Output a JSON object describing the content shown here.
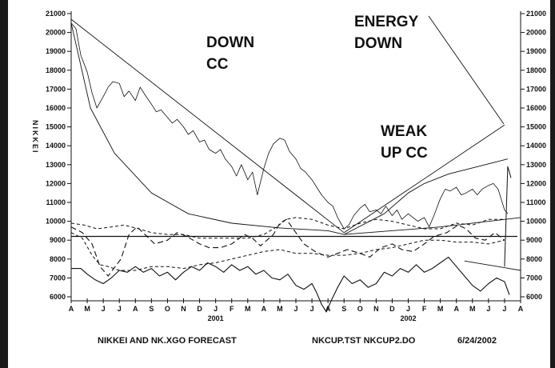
{
  "chart_data": {
    "type": "line",
    "ylabel": "NIKKEI",
    "ylim": [
      6000,
      21000
    ],
    "y_ticks": [
      6000,
      7000,
      8000,
      9000,
      10000,
      11000,
      12000,
      13000,
      14000,
      15000,
      16000,
      17000,
      18000,
      19000,
      20000,
      21000
    ],
    "months": [
      "A",
      "M",
      "J",
      "J",
      "A",
      "S",
      "O",
      "N",
      "D",
      "J",
      "F",
      "M",
      "A",
      "M",
      "J",
      "J",
      "A",
      "S",
      "O",
      "N",
      "D",
      "J",
      "F",
      "M",
      "A",
      "M",
      "J",
      "J",
      "A"
    ],
    "year_labels": [
      {
        "label": "2001",
        "month_index": 9
      },
      {
        "label": "2002",
        "month_index": 21
      }
    ],
    "annotations": [
      {
        "lines": [
          "DOWN",
          "CC"
        ]
      },
      {
        "lines": [
          "ENERGY",
          "DOWN"
        ]
      },
      {
        "lines": [
          "WEAK",
          "UP CC"
        ]
      }
    ],
    "footer": {
      "left": "NIKKEI AND NK.XGO FORECAST",
      "middle": "NKCUP.TST NKCUP2.DO",
      "right": "6/24/2002"
    },
    "series": [
      {
        "values_by_month": [
          [
            0,
            20500
          ],
          [
            0.3,
            20200
          ],
          [
            0.6,
            18800
          ],
          [
            1,
            17900
          ],
          [
            1.3,
            16800
          ],
          [
            1.6,
            16000
          ],
          [
            2,
            16600
          ],
          [
            2.3,
            17100
          ],
          [
            2.6,
            17400
          ],
          [
            3,
            17300
          ],
          [
            3.3,
            16600
          ],
          [
            3.6,
            16900
          ],
          [
            4,
            16400
          ],
          [
            4.3,
            17100
          ],
          [
            4.6,
            16700
          ],
          [
            5,
            16200
          ],
          [
            5.3,
            15800
          ],
          [
            5.6,
            15900
          ],
          [
            6,
            15500
          ],
          [
            6.3,
            15200
          ],
          [
            6.6,
            15400
          ],
          [
            7,
            15000
          ],
          [
            7.3,
            14600
          ],
          [
            7.6,
            14800
          ],
          [
            8,
            14200
          ],
          [
            8.3,
            14300
          ],
          [
            8.6,
            13800
          ],
          [
            9,
            13600
          ],
          [
            9.3,
            13800
          ],
          [
            9.6,
            13300
          ],
          [
            10,
            12900
          ],
          [
            10.3,
            12400
          ],
          [
            10.6,
            13000
          ],
          [
            11,
            12200
          ],
          [
            11.3,
            12600
          ],
          [
            11.6,
            11400
          ],
          [
            12,
            12800
          ],
          [
            12.3,
            13600
          ],
          [
            12.6,
            14100
          ],
          [
            13,
            14400
          ],
          [
            13.3,
            14300
          ],
          [
            13.6,
            13700
          ],
          [
            14,
            13300
          ],
          [
            14.3,
            12800
          ],
          [
            14.6,
            12600
          ],
          [
            15,
            12200
          ],
          [
            15.3,
            11800
          ],
          [
            15.6,
            11400
          ],
          [
            16,
            11000
          ],
          [
            16.3,
            10800
          ],
          [
            16.6,
            10200
          ],
          [
            17,
            9600
          ],
          [
            17.3,
            9800
          ],
          [
            17.6,
            10300
          ],
          [
            18,
            10700
          ],
          [
            18.3,
            10900
          ],
          [
            18.6,
            10500
          ],
          [
            19,
            10600
          ],
          [
            19.3,
            10400
          ],
          [
            19.6,
            10800
          ],
          [
            20,
            10300
          ],
          [
            20.3,
            10600
          ],
          [
            20.6,
            10100
          ],
          [
            21,
            10400
          ],
          [
            21.3,
            10200
          ],
          [
            21.6,
            10000
          ],
          [
            22,
            10200
          ],
          [
            22.3,
            9700
          ],
          [
            22.6,
            10300
          ],
          [
            23,
            11200
          ],
          [
            23.3,
            11700
          ],
          [
            23.6,
            11600
          ],
          [
            24,
            11800
          ],
          [
            24.3,
            11400
          ],
          [
            24.6,
            11500
          ],
          [
            25,
            11700
          ],
          [
            25.3,
            11400
          ],
          [
            25.6,
            11700
          ],
          [
            26,
            11900
          ],
          [
            26.3,
            12000
          ],
          [
            26.6,
            11700
          ],
          [
            27,
            10600
          ],
          [
            27.2,
            10400
          ]
        ]
      },
      {
        "values_by_month": [
          [
            0,
            20500
          ],
          [
            1.2,
            16000
          ],
          [
            2.7,
            13600
          ],
          [
            5,
            11500
          ],
          [
            7.3,
            10400
          ],
          [
            10,
            9900
          ],
          [
            13,
            9650
          ],
          [
            16,
            9500
          ],
          [
            17,
            9300
          ],
          [
            19.5,
            10400
          ],
          [
            21,
            11500
          ],
          [
            22,
            12000
          ],
          [
            23.5,
            12500
          ],
          [
            27.2,
            13300
          ]
        ]
      },
      {
        "values_by_month": [
          [
            0,
            20700
          ],
          [
            17,
            9400
          ],
          [
            27,
            15100
          ]
        ]
      },
      {
        "values_by_month": [
          [
            17,
            9300
          ],
          [
            23,
            9700
          ],
          [
            28,
            10200
          ]
        ]
      },
      {
        "values_by_month": [
          [
            0,
            9200
          ],
          [
            27.8,
            9200
          ]
        ]
      },
      {
        "values_by_month": [
          [
            0,
            9700
          ],
          [
            0.7,
            9400
          ],
          [
            1.3,
            8800
          ],
          [
            1.8,
            7600
          ],
          [
            2.3,
            7100
          ],
          [
            3.1,
            8000
          ],
          [
            3.6,
            9300
          ],
          [
            4.1,
            9700
          ],
          [
            4.6,
            9300
          ],
          [
            5.2,
            8800
          ],
          [
            6,
            9000
          ],
          [
            6.6,
            9400
          ],
          [
            7.2,
            9200
          ],
          [
            8,
            8800
          ],
          [
            8.6,
            8600
          ],
          [
            9.3,
            8600
          ],
          [
            10,
            8800
          ],
          [
            10.8,
            9300
          ],
          [
            11.3,
            9100
          ],
          [
            11.8,
            8700
          ],
          [
            12.6,
            9300
          ],
          [
            13,
            9900
          ],
          [
            13.4,
            10100
          ],
          [
            14,
            9400
          ],
          [
            14.5,
            8800
          ],
          [
            15.2,
            8400
          ],
          [
            16,
            8100
          ],
          [
            16.6,
            8300
          ],
          [
            17.2,
            8500
          ],
          [
            18,
            8300
          ],
          [
            18.6,
            8100
          ],
          [
            19.3,
            8600
          ],
          [
            20,
            8800
          ],
          [
            20.6,
            8500
          ],
          [
            21.3,
            8400
          ],
          [
            22,
            8800
          ],
          [
            22.6,
            9200
          ],
          [
            23.4,
            9400
          ],
          [
            24.1,
            9800
          ],
          [
            24.6,
            9600
          ],
          [
            25.2,
            9100
          ],
          [
            25.8,
            9000
          ],
          [
            26.4,
            9400
          ],
          [
            27,
            9000
          ]
        ]
      },
      {
        "values_by_month": [
          [
            0,
            9900
          ],
          [
            0.8,
            9800
          ],
          [
            1.6,
            9600
          ],
          [
            2.5,
            9700
          ],
          [
            3.3,
            9800
          ],
          [
            4.2,
            9600
          ],
          [
            5,
            9400
          ],
          [
            6,
            9300
          ],
          [
            7,
            9300
          ],
          [
            8,
            9100
          ],
          [
            9,
            9100
          ],
          [
            10,
            9100
          ],
          [
            11,
            9100
          ],
          [
            12,
            9300
          ],
          [
            12.8,
            9700
          ],
          [
            13.4,
            10100
          ],
          [
            14,
            10200
          ],
          [
            15,
            10100
          ],
          [
            16,
            9800
          ],
          [
            17,
            9600
          ],
          [
            18,
            9900
          ],
          [
            19,
            10100
          ],
          [
            20,
            10000
          ],
          [
            21,
            9800
          ],
          [
            22,
            9600
          ],
          [
            23,
            9600
          ],
          [
            24,
            9900
          ],
          [
            25,
            9800
          ],
          [
            26,
            10100
          ],
          [
            27,
            10100
          ]
        ]
      },
      {
        "values_by_month": [
          [
            0,
            9400
          ],
          [
            0.7,
            9100
          ],
          [
            1.3,
            8200
          ],
          [
            1.8,
            7700
          ],
          [
            2.3,
            7600
          ],
          [
            3,
            7400
          ],
          [
            4,
            7400
          ],
          [
            5,
            7600
          ],
          [
            6,
            7600
          ],
          [
            7,
            7500
          ],
          [
            8,
            7700
          ],
          [
            9,
            7800
          ],
          [
            10,
            8000
          ],
          [
            11,
            8200
          ],
          [
            12,
            8400
          ],
          [
            13,
            8500
          ],
          [
            14,
            8300
          ],
          [
            15,
            8300
          ],
          [
            16,
            8200
          ],
          [
            17,
            8200
          ],
          [
            18,
            8300
          ],
          [
            19,
            8500
          ],
          [
            20,
            8600
          ],
          [
            21,
            8800
          ],
          [
            22,
            9000
          ],
          [
            23,
            9000
          ],
          [
            24,
            8900
          ],
          [
            25,
            8900
          ],
          [
            26,
            8800
          ],
          [
            27,
            9000
          ]
        ]
      },
      {
        "values_by_month": [
          [
            0,
            7500
          ],
          [
            0.6,
            7500
          ],
          [
            1,
            7200
          ],
          [
            1.5,
            6900
          ],
          [
            2,
            6700
          ],
          [
            2.5,
            7000
          ],
          [
            3,
            7400
          ],
          [
            3.5,
            7300
          ],
          [
            4,
            7600
          ],
          [
            4.5,
            7300
          ],
          [
            5,
            7500
          ],
          [
            5.5,
            7100
          ],
          [
            6,
            7300
          ],
          [
            6.5,
            6900
          ],
          [
            7,
            7300
          ],
          [
            7.5,
            7600
          ],
          [
            8,
            7400
          ],
          [
            8.5,
            7800
          ],
          [
            9,
            7600
          ],
          [
            9.5,
            7300
          ],
          [
            10,
            7700
          ],
          [
            10.5,
            7400
          ],
          [
            11,
            7600
          ],
          [
            11.5,
            7200
          ],
          [
            12,
            7400
          ],
          [
            12.5,
            7000
          ],
          [
            13,
            6900
          ],
          [
            13.5,
            7200
          ],
          [
            14,
            6600
          ],
          [
            14.5,
            6400
          ],
          [
            15,
            6700
          ],
          [
            15.3,
            6200
          ],
          [
            15.6,
            5600
          ],
          [
            15.9,
            5200
          ],
          [
            16.2,
            5800
          ],
          [
            16.6,
            6500
          ],
          [
            17,
            7100
          ],
          [
            17.5,
            6700
          ],
          [
            18,
            6900
          ],
          [
            18.5,
            6500
          ],
          [
            19,
            6700
          ],
          [
            19.5,
            7300
          ],
          [
            20,
            7100
          ],
          [
            20.5,
            7500
          ],
          [
            21,
            7300
          ],
          [
            21.5,
            7700
          ],
          [
            22,
            7300
          ],
          [
            22.5,
            7500
          ],
          [
            23,
            7800
          ],
          [
            23.5,
            8100
          ],
          [
            24,
            7600
          ],
          [
            24.5,
            7100
          ],
          [
            25,
            6600
          ],
          [
            25.5,
            6300
          ],
          [
            26,
            6700
          ],
          [
            26.5,
            7000
          ],
          [
            27,
            6800
          ],
          [
            27.3,
            6100
          ]
        ]
      },
      {
        "values_by_month": [
          [
            24.5,
            7900
          ],
          [
            28,
            7400
          ]
        ]
      },
      {
        "values_by_month": [
          [
            27,
            7600
          ],
          [
            27.2,
            12900
          ],
          [
            27.4,
            12300
          ]
        ]
      }
    ]
  }
}
